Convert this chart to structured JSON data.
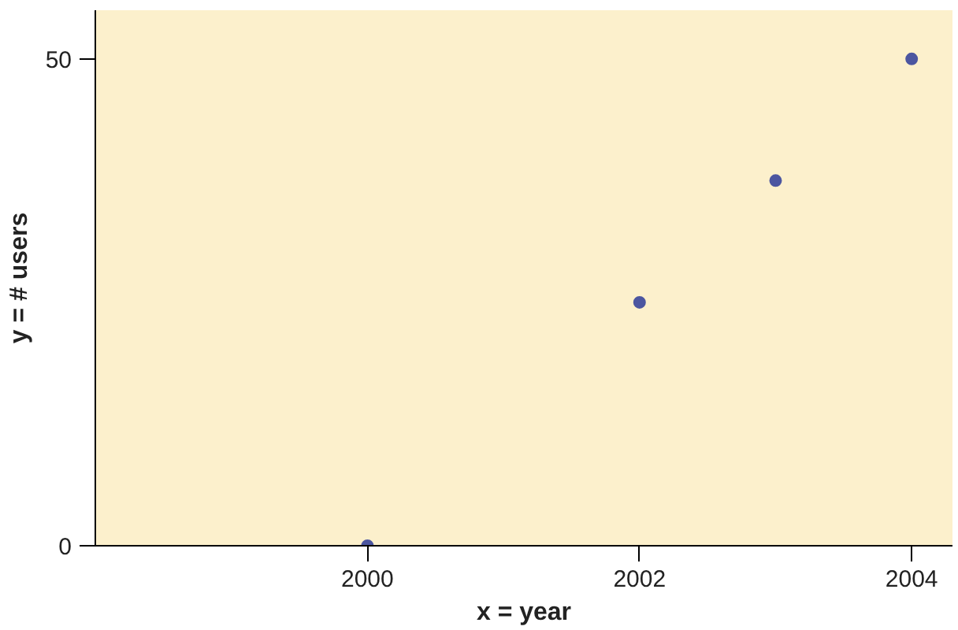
{
  "chart_data": {
    "type": "scatter",
    "xlabel": "x = year",
    "ylabel": "y = # users",
    "x": [
      2000,
      2002,
      2003,
      2004
    ],
    "series": [
      {
        "color": "#4c56a0",
        "values": [
          0,
          25,
          37.5,
          50
        ]
      }
    ],
    "xlim": [
      1998,
      2004.3
    ],
    "ylim": [
      0,
      55
    ],
    "xticks": [
      2000,
      2002,
      2004
    ],
    "yticks": [
      0,
      50
    ],
    "marker": "circle"
  }
}
